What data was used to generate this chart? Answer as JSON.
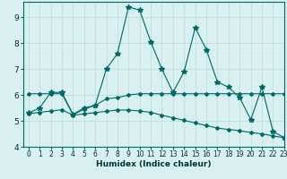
{
  "xlabel": "Humidex (Indice chaleur)",
  "background_color": "#d8f0f0",
  "grid_color": "#c0dede",
  "line_color": "#006868",
  "xlim": [
    -0.5,
    23
  ],
  "ylim": [
    4,
    9.6
  ],
  "xticks": [
    0,
    1,
    2,
    3,
    4,
    5,
    6,
    7,
    8,
    9,
    10,
    11,
    12,
    13,
    14,
    15,
    16,
    17,
    18,
    19,
    20,
    21,
    22,
    23
  ],
  "yticks": [
    4,
    5,
    6,
    7,
    8,
    9
  ],
  "line1_x": [
    0,
    1,
    2,
    3,
    4,
    5,
    6,
    7,
    8,
    9,
    10,
    11,
    12,
    13,
    14,
    15,
    16,
    17,
    18,
    19,
    20,
    21,
    22,
    23
  ],
  "line1_y": [
    5.3,
    5.5,
    6.1,
    6.1,
    5.25,
    5.5,
    5.6,
    7.0,
    7.6,
    9.4,
    9.28,
    8.05,
    7.0,
    6.1,
    6.9,
    8.6,
    7.75,
    6.5,
    6.3,
    5.9,
    5.05,
    6.3,
    4.6,
    4.35
  ],
  "line2_full_x": [
    0,
    1,
    2,
    3,
    4,
    5,
    6,
    7,
    8,
    9,
    10,
    11,
    12,
    13,
    14,
    15,
    16,
    17,
    18,
    19,
    20,
    21,
    22,
    23
  ],
  "line2_full_y": [
    6.05,
    6.05,
    6.05,
    6.05,
    5.25,
    5.45,
    5.6,
    5.85,
    5.9,
    6.0,
    6.05,
    6.05,
    6.05,
    6.05,
    6.05,
    6.05,
    6.05,
    6.05,
    6.05,
    6.05,
    6.05,
    6.05,
    6.05,
    6.05
  ],
  "line3_x": [
    0,
    1,
    2,
    3,
    4,
    5,
    6,
    7,
    8,
    9,
    10,
    11,
    12,
    13,
    14,
    15,
    16,
    17,
    18,
    19,
    20,
    21,
    22,
    23
  ],
  "line3_y": [
    5.28,
    5.33,
    5.38,
    5.43,
    5.22,
    5.27,
    5.32,
    5.37,
    5.42,
    5.42,
    5.38,
    5.33,
    5.22,
    5.12,
    5.02,
    4.92,
    4.82,
    4.72,
    4.67,
    4.62,
    4.55,
    4.5,
    4.42,
    4.35
  ]
}
